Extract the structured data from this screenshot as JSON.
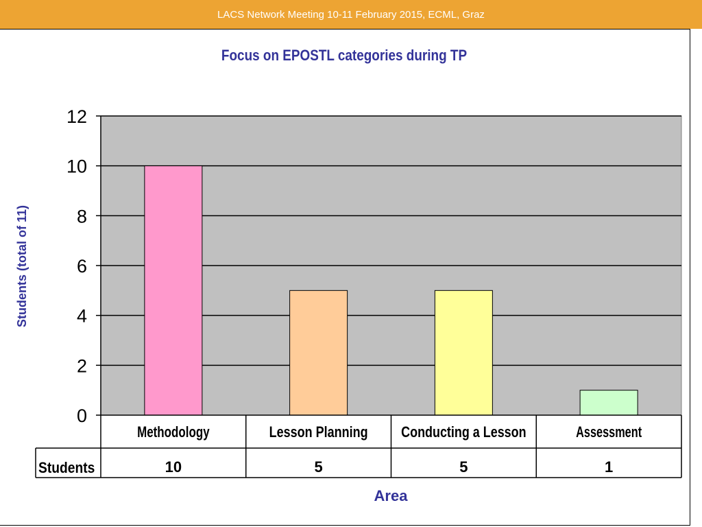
{
  "header": {
    "text": "LACS Network Meeting 10-11 February 2015, ECML, Graz"
  },
  "chart_data": {
    "type": "bar",
    "title": "Focus on EPOSTL categories during TP",
    "ylabel": "Students (total of 11)",
    "xlabel": "Area",
    "categories": [
      "Methodology",
      "Lesson Planning",
      "Conducting a Lesson",
      "Assessment"
    ],
    "series": [
      {
        "name": "Students",
        "values": [
          10,
          5,
          5,
          1
        ]
      }
    ],
    "ylim": [
      0,
      12
    ],
    "yticks": [
      0,
      2,
      4,
      6,
      8,
      10,
      12
    ],
    "grid": true,
    "legend": "none",
    "data_table": true,
    "colors": {
      "plot_background": "#c0c0c0",
      "title": "#333399",
      "bars": [
        "#ff99cc",
        "#ffcc99",
        "#ffff99",
        "#ccffcc"
      ]
    }
  }
}
